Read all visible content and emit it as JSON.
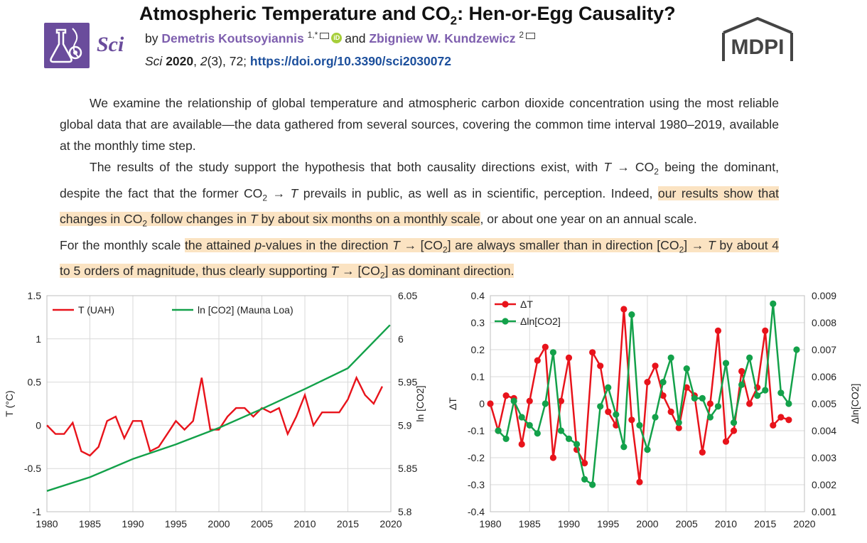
{
  "header": {
    "title_main": "Atmospheric Temperature and CO",
    "title_sub": "2",
    "title_tail": ": Hen-or-Egg Causality?",
    "journal_logo_text": "Sci",
    "by": "by",
    "author1": "Demetris Koutsoyiannis",
    "author1_sup": "1,*",
    "and": "and",
    "author2": "Zbigniew W. Kundzewicz",
    "author2_sup": "2",
    "orcid_label": "iD",
    "cite_journal": "Sci",
    "cite_year": "2020",
    "cite_volume": "2",
    "cite_rest": "(3), 72;",
    "doi": "https://doi.org/10.3390/sci2030072",
    "publisher": "MDPI"
  },
  "abstract": {
    "p1": "We examine the relationship of global temperature and atmospheric carbon dioxide concentration using the most reliable global data that are available—the data gathered from several sources, covering the common time interval 1980–2019, available at the monthly time step.",
    "p2_a": "The results of the study support the hypothesis that both causality directions exist, with ",
    "p2_b": " being the dominant, despite the fact that the former CO",
    "p2_c": " prevails in public, as well as in scientific, perception. Indeed, ",
    "p2_hl": "our results show that changes in CO",
    "p2_hl2": " follow changes in ",
    "p2_hl3": " by about six months on a monthly scale",
    "p2_d": ", or about one year on an annual scale.",
    "p3_a": "For the monthly scale ",
    "p3_hl1": "the attained ",
    "p3_hl2": "-values in the direction ",
    "p3_hl3": " are always smaller than in direction [CO",
    "p3_hl4": " by about 4 to 5 orders of magnitude, thus clearly supporting ",
    "p3_hl5": " as dominant direction."
  },
  "colors": {
    "red": "#e8131b",
    "green": "#13a14a",
    "purple": "#7e5fae",
    "doi": "#1c4f9c",
    "highlight": "#fbe3c2"
  },
  "chart_data": [
    {
      "type": "line",
      "title": "",
      "ylabel": "T (°C)",
      "y2label": "ln [CO2]",
      "xlim": [
        1980,
        2020
      ],
      "ylim": [
        -1,
        1.5
      ],
      "y2lim": [
        5.8,
        6.05
      ],
      "x_ticks": [
        "1980",
        "1985",
        "1990",
        "1995",
        "2000",
        "2005",
        "2010",
        "2015",
        "2020"
      ],
      "y_ticks": [
        "-1",
        "-0.5",
        "0",
        "0.5",
        "1",
        "1.5"
      ],
      "y2_ticks": [
        "5.8",
        "5.85",
        "5.9",
        "5.95",
        "6",
        "6.05"
      ],
      "legend": "top-left",
      "grid": true,
      "series": [
        {
          "name": "T (UAH)",
          "axis": "left",
          "color": "#e8131b",
          "x": [
            1980,
            1981,
            1982,
            1983,
            1984,
            1985,
            1986,
            1987,
            1988,
            1989,
            1990,
            1991,
            1992,
            1993,
            1994,
            1995,
            1996,
            1997,
            1998,
            1999,
            2000,
            2001,
            2002,
            2003,
            2004,
            2005,
            2006,
            2007,
            2008,
            2009,
            2010,
            2011,
            2012,
            2013,
            2014,
            2015,
            2016,
            2017,
            2018,
            2019
          ],
          "values": [
            0.0,
            -0.1,
            -0.1,
            0.03,
            -0.3,
            -0.35,
            -0.25,
            0.05,
            0.1,
            -0.15,
            0.05,
            0.05,
            -0.3,
            -0.25,
            -0.1,
            0.05,
            -0.05,
            0.05,
            0.55,
            -0.05,
            -0.05,
            0.1,
            0.2,
            0.2,
            0.1,
            0.2,
            0.15,
            0.2,
            -0.1,
            0.1,
            0.35,
            0.0,
            0.15,
            0.15,
            0.15,
            0.3,
            0.55,
            0.35,
            0.25,
            0.45
          ]
        },
        {
          "name": "ln [CO2] (Mauna Loa)",
          "axis": "right",
          "color": "#13a14a",
          "x": [
            1980,
            1985,
            1990,
            1995,
            2000,
            2005,
            2010,
            2015,
            2019.9
          ],
          "values": [
            5.824,
            5.84,
            5.861,
            5.878,
            5.897,
            5.919,
            5.942,
            5.966,
            6.016
          ]
        }
      ]
    },
    {
      "type": "line",
      "title": "",
      "ylabel": "ΔT",
      "y2label": "Δln[CO2]",
      "xlim": [
        1980,
        2020
      ],
      "ylim": [
        -0.4,
        0.4
      ],
      "y2lim": [
        0.001,
        0.009
      ],
      "x_ticks": [
        "1980",
        "1985",
        "1990",
        "1995",
        "2000",
        "2005",
        "2010",
        "2015",
        "2020"
      ],
      "y_ticks": [
        "-0.4",
        "-0.3",
        "-0.2",
        "-0.1",
        "0",
        "0.1",
        "0.2",
        "0.3",
        "0.4"
      ],
      "y2_ticks": [
        "0.001",
        "0.002",
        "0.003",
        "0.004",
        "0.005",
        "0.006",
        "0.007",
        "0.008",
        "0.009"
      ],
      "legend": "top-left",
      "grid": true,
      "series": [
        {
          "name": "ΔT",
          "axis": "left",
          "color": "#e8131b",
          "x": [
            1980,
            1981,
            1982,
            1983,
            1984,
            1985,
            1986,
            1987,
            1988,
            1989,
            1990,
            1991,
            1992,
            1993,
            1994,
            1995,
            1996,
            1997,
            1998,
            1999,
            2000,
            2001,
            2002,
            2003,
            2004,
            2005,
            2006,
            2007,
            2008,
            2009,
            2010,
            2011,
            2012,
            2013,
            2014,
            2015,
            2016,
            2017,
            2018
          ],
          "values": [
            0.0,
            -0.1,
            0.03,
            0.02,
            -0.15,
            0.01,
            0.16,
            0.21,
            -0.2,
            0.01,
            0.17,
            -0.17,
            -0.22,
            0.19,
            0.14,
            -0.03,
            -0.08,
            0.35,
            -0.06,
            -0.29,
            0.08,
            0.14,
            0.03,
            -0.03,
            -0.09,
            0.06,
            0.03,
            -0.18,
            0.0,
            0.27,
            -0.14,
            -0.1,
            0.12,
            0.0,
            0.06,
            0.27,
            -0.08,
            -0.05,
            -0.06
          ]
        },
        {
          "name": "Δln[CO2]",
          "axis": "right",
          "color": "#13a14a",
          "x": [
            1981,
            1982,
            1983,
            1984,
            1985,
            1986,
            1987,
            1988,
            1989,
            1990,
            1991,
            1992,
            1993,
            1994,
            1995,
            1996,
            1997,
            1998,
            1999,
            2000,
            2001,
            2002,
            2003,
            2004,
            2005,
            2006,
            2007,
            2008,
            2009,
            2010,
            2011,
            2012,
            2013,
            2014,
            2015,
            2016,
            2017,
            2018,
            2019
          ],
          "values": [
            0.004,
            0.0037,
            0.0051,
            0.0045,
            0.0042,
            0.0039,
            0.005,
            0.0069,
            0.004,
            0.0037,
            0.0035,
            0.0022,
            0.002,
            0.0049,
            0.0056,
            0.0046,
            0.0034,
            0.0083,
            0.0042,
            0.0033,
            0.0045,
            0.0058,
            0.0067,
            0.0043,
            0.0063,
            0.0052,
            0.0052,
            0.0045,
            0.0049,
            0.0065,
            0.0043,
            0.0057,
            0.0067,
            0.0053,
            0.0055,
            0.0087,
            0.0054,
            0.005,
            0.007
          ]
        }
      ]
    }
  ]
}
